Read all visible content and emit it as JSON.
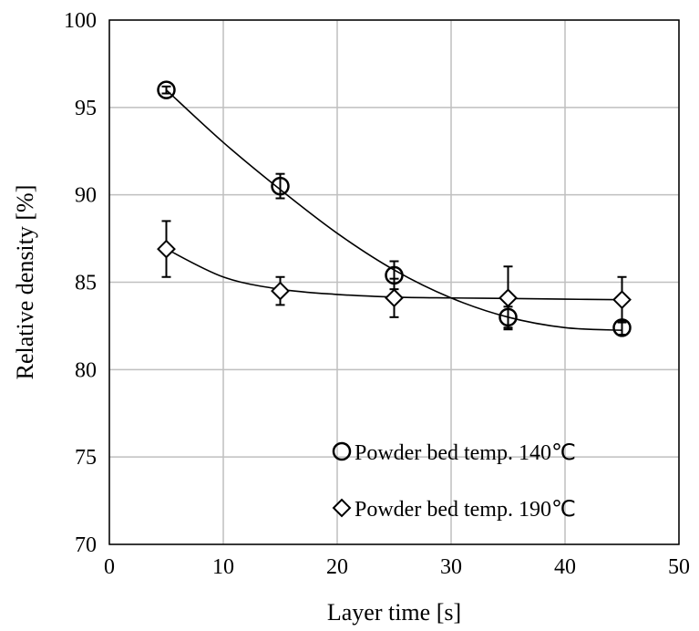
{
  "chart_data": {
    "type": "scatter",
    "xlabel": "Layer time [s]",
    "ylabel": "Relative density [%]",
    "xlim": [
      0,
      50
    ],
    "ylim": [
      70,
      100
    ],
    "x_ticks": [
      "0",
      "10",
      "20",
      "30",
      "40",
      "50"
    ],
    "y_ticks": [
      "70",
      "75",
      "80",
      "85",
      "90",
      "95",
      "100"
    ],
    "grid": true,
    "legend_position": "bottom-right",
    "x": [
      5,
      15,
      25,
      35,
      45
    ],
    "series": [
      {
        "name": "Powder bed temp. 140℃",
        "marker": "circle",
        "values": [
          96.0,
          90.5,
          85.4,
          83.0,
          82.4
        ],
        "error": [
          0.2,
          0.7,
          0.8,
          0.6,
          0.4
        ],
        "fit": [
          [
            5,
            96.0
          ],
          [
            10,
            93.0
          ],
          [
            15,
            90.3
          ],
          [
            20,
            87.8
          ],
          [
            25,
            85.7
          ],
          [
            30,
            84.1
          ],
          [
            35,
            83.0
          ],
          [
            40,
            82.4
          ],
          [
            45,
            82.25
          ]
        ]
      },
      {
        "name": "Powder bed temp. 190℃",
        "marker": "diamond",
        "values": [
          86.9,
          84.5,
          84.1,
          84.1,
          84.0
        ],
        "error": [
          1.6,
          0.8,
          1.1,
          1.8,
          1.3
        ],
        "fit": [
          [
            5,
            86.9
          ],
          [
            10,
            85.3
          ],
          [
            15,
            84.6
          ],
          [
            20,
            84.3
          ],
          [
            25,
            84.15
          ],
          [
            30,
            84.1
          ],
          [
            35,
            84.07
          ],
          [
            40,
            84.03
          ],
          [
            45,
            84.0
          ]
        ]
      }
    ]
  }
}
